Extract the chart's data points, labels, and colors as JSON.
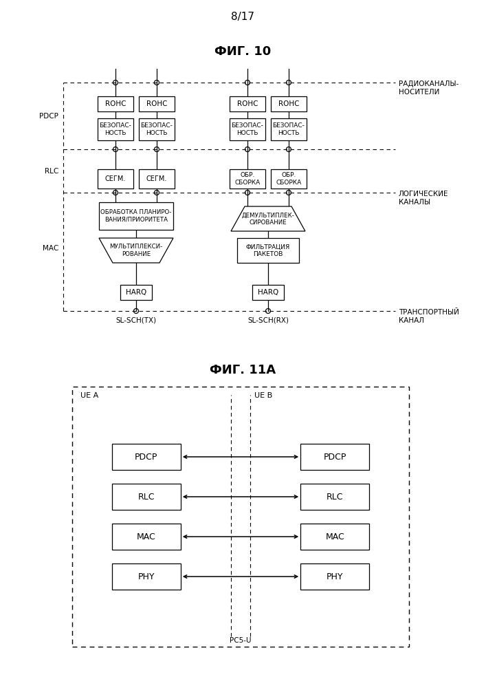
{
  "page_label": "8/17",
  "fig10_title": "ФИГ. 10",
  "fig11a_title": "ФИГ. 11А",
  "bg_color": "#ffffff",
  "line_color": "#000000",
  "fig10": {
    "radio_channels_label": "РАДИОКАНАЛЫ-\nНОСИТЕЛИ",
    "logical_channels_label": "ЛОГИЧЕСКИЕ\nКАНАЛЫ",
    "transport_channel_label": "ТРАНСПОРТНЫЙ\nКАНАЛ",
    "pdcp_label": "PDCP",
    "rlc_label": "RLC",
    "mac_label": "MAC",
    "slsch_tx_label": "SL-SCH(TX)",
    "slsch_rx_label": "SL-SCH(RX)"
  },
  "fig11a": {
    "outer_label": "PC5-U",
    "uea_label": "UE A",
    "ueb_label": "UE B",
    "layers": [
      "PDCP",
      "RLC",
      "MAC",
      "PHY"
    ]
  }
}
